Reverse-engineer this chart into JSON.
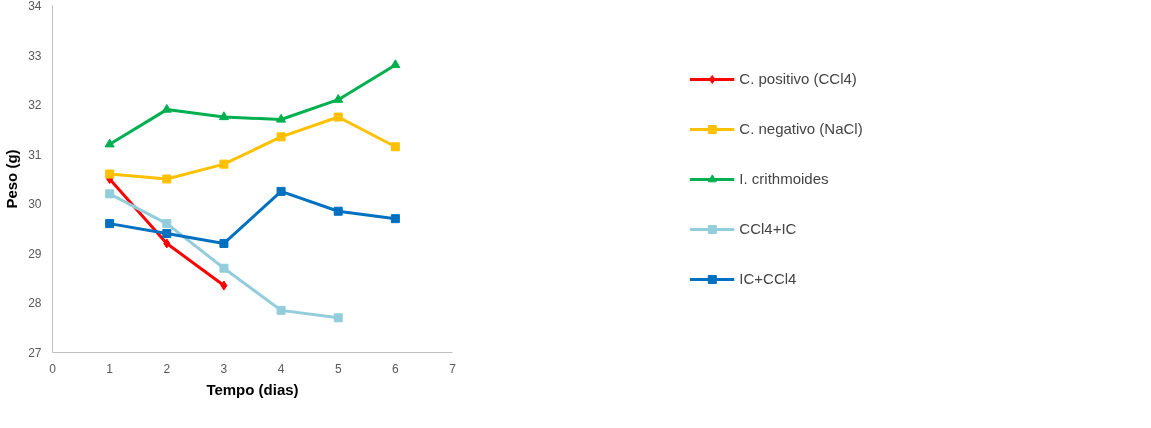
{
  "chart_data": {
    "type": "line",
    "xlabel": "Tempo (dias)",
    "ylabel": "Peso (g)",
    "xlim": [
      0,
      7
    ],
    "xticks": [
      0,
      1,
      2,
      3,
      4,
      5,
      6,
      7
    ],
    "ylim": [
      27,
      34
    ],
    "yticks": [
      27,
      28,
      29,
      30,
      31,
      32,
      33,
      34
    ],
    "grid": false,
    "legend": "right",
    "line_style": "solid",
    "series": [
      {
        "name": "C. positivo (CCl4)",
        "color": "#ff0000",
        "marker": "diamond",
        "x": [
          1,
          2,
          3
        ],
        "values": [
          30.5,
          29.2,
          28.35
        ]
      },
      {
        "name": "C. negativo (NaCl)",
        "color": "#ffc000",
        "marker": "square",
        "x": [
          1,
          2,
          3,
          4,
          5,
          6
        ],
        "values": [
          30.6,
          30.5,
          30.8,
          31.35,
          31.75,
          31.15
        ]
      },
      {
        "name": "I. crithmoides",
        "color": "#00b050",
        "marker": "triangle",
        "x": [
          1,
          2,
          3,
          4,
          5,
          6
        ],
        "values": [
          31.2,
          31.9,
          31.75,
          31.7,
          32.1,
          32.8
        ]
      },
      {
        "name": "CCl4+IC",
        "color": "#92cddc",
        "marker": "square",
        "x": [
          1,
          2,
          3,
          4,
          5
        ],
        "values": [
          30.2,
          29.6,
          28.7,
          27.85,
          27.7
        ]
      },
      {
        "name": "IC+CCl4",
        "color": "#0070c0",
        "marker": "square",
        "x": [
          1,
          2,
          3,
          4,
          5,
          6
        ],
        "values": [
          29.6,
          29.4,
          29.2,
          30.25,
          29.85,
          29.7
        ]
      }
    ]
  }
}
